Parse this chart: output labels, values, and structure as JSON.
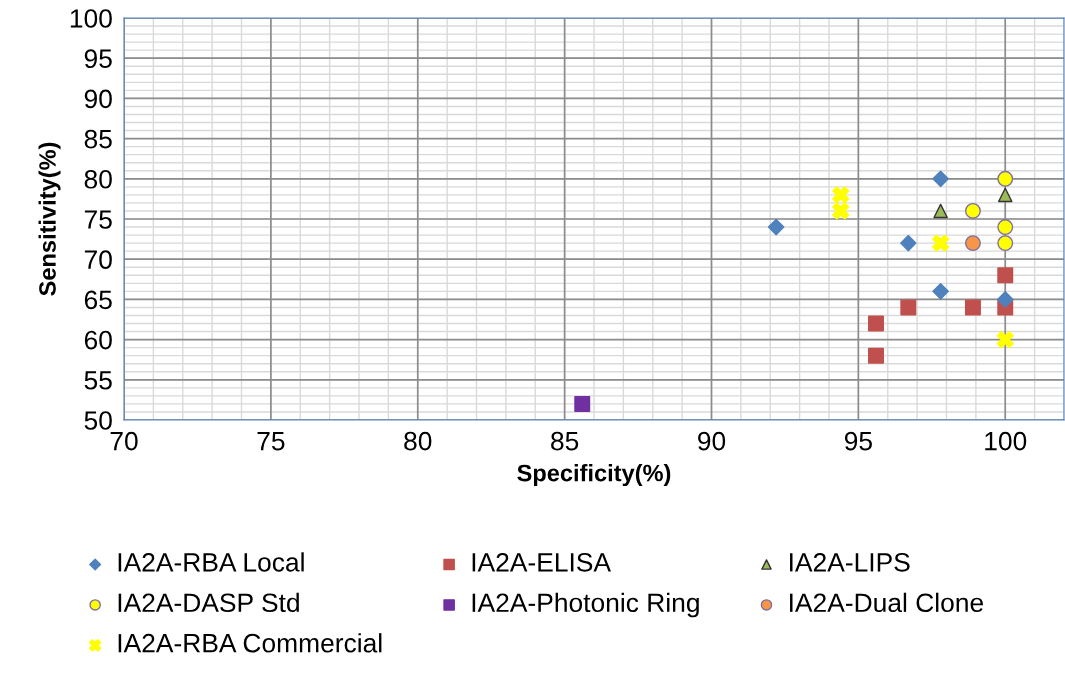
{
  "chart_data": {
    "type": "scatter",
    "xlabel": "Specificity(%)",
    "ylabel": "Sensitivity(%)",
    "xlim": [
      70,
      102
    ],
    "xticks": [
      70,
      75,
      80,
      85,
      90,
      95,
      100
    ],
    "ylim": [
      50,
      100
    ],
    "yticks": [
      50,
      55,
      60,
      65,
      70,
      75,
      80,
      85,
      90,
      95,
      100
    ],
    "grid": true,
    "legend": "bottom",
    "series": [
      {
        "name": "IA2A-RBA Local",
        "color": "#4f81bd",
        "marker": "diamond",
        "x": [
          92.2,
          97.8,
          96.7,
          97.8,
          100
        ],
        "values": [
          74,
          80,
          72,
          66,
          65
        ]
      },
      {
        "name": "IA2A-ELISA",
        "color": "#c0504d",
        "marker": "square",
        "x": [
          95.6,
          95.6,
          96.7,
          98.9,
          100,
          100
        ],
        "values": [
          62,
          58,
          64,
          64,
          64,
          68
        ]
      },
      {
        "name": "IA2A-LIPS",
        "color": "#9bbb59",
        "marker": "triangle",
        "x": [
          97.8,
          100
        ],
        "values": [
          76,
          78
        ]
      },
      {
        "name": "IA2A-DASP Std",
        "color": "#ffff00",
        "marker": "circle",
        "x": [
          100,
          98.9,
          100,
          100
        ],
        "values": [
          80,
          76,
          74,
          72
        ]
      },
      {
        "name": "IA2A-Photonic Ring",
        "color": "#7030a0",
        "marker": "square",
        "x": [
          85.6
        ],
        "values": [
          52
        ]
      },
      {
        "name": "IA2A-Dual Clone",
        "color": "#f79646",
        "marker": "circle",
        "x": [
          98.9
        ],
        "values": [
          72
        ]
      },
      {
        "name": "IA2A-RBA Commercial",
        "color": "#ffff00",
        "marker": "cross",
        "x": [
          94.4,
          94.4,
          97.8,
          100
        ],
        "values": [
          78,
          76,
          72,
          60
        ]
      }
    ]
  }
}
